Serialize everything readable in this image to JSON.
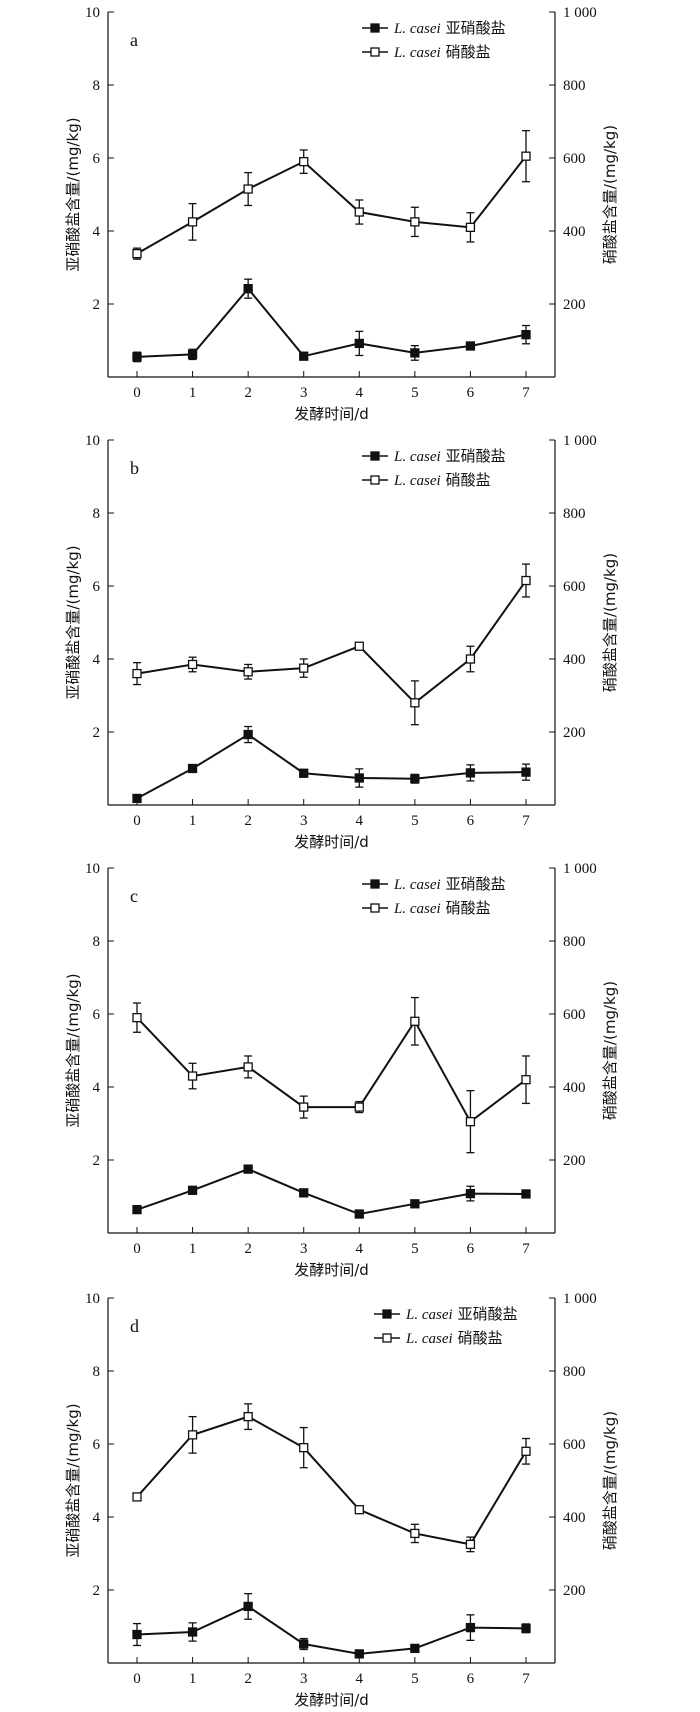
{
  "chart_data": [
    {
      "type": "line",
      "panel_label": "a",
      "categories": [
        "0",
        "1",
        "2",
        "3",
        "4",
        "5",
        "6",
        "7"
      ],
      "xlabel": "发酵时间/d",
      "ylabel": "亚硝酸盐含量/(mg/kg)",
      "y2label": "硝酸盐含量/(mg/kg)",
      "ylim": [
        0,
        10
      ],
      "y2lim": [
        0,
        1000
      ],
      "yticks": [
        "2",
        "4",
        "6",
        "8",
        "10"
      ],
      "y2ticks": [
        "200",
        "400",
        "600",
        "800",
        "1 000"
      ],
      "legend_position": "top-right",
      "series": [
        {
          "name_prefix": "L. casei",
          "name_suffix": "亚硝酸盐",
          "axis": "left",
          "marker": "filled-square",
          "values": [
            0.55,
            0.62,
            2.42,
            0.57,
            0.92,
            0.66,
            0.85,
            1.16
          ],
          "errors": [
            0.13,
            0.14,
            0.26,
            0.05,
            0.33,
            0.2,
            0.1,
            0.25
          ]
        },
        {
          "name_prefix": "L. casei",
          "name_suffix": "硝酸盐",
          "axis": "right",
          "marker": "open-square",
          "values": [
            338,
            425,
            515,
            590,
            452,
            425,
            410,
            605
          ],
          "errors": [
            15,
            50,
            45,
            32,
            33,
            40,
            40,
            70
          ]
        }
      ]
    },
    {
      "type": "line",
      "panel_label": "b",
      "categories": [
        "0",
        "1",
        "2",
        "3",
        "4",
        "5",
        "6",
        "7"
      ],
      "xlabel": "发酵时间/d",
      "ylabel": "亚硝酸盐含量/(mg/kg)",
      "y2label": "硝酸盐含量/(mg/kg)",
      "ylim": [
        0,
        10
      ],
      "y2lim": [
        0,
        1000
      ],
      "yticks": [
        "2",
        "4",
        "6",
        "8",
        "10"
      ],
      "y2ticks": [
        "200",
        "400",
        "600",
        "800",
        "1 000"
      ],
      "legend_position": "top-right",
      "series": [
        {
          "name_prefix": "L. casei",
          "name_suffix": "亚硝酸盐",
          "axis": "left",
          "marker": "filled-square",
          "values": [
            0.18,
            1.0,
            1.93,
            0.87,
            0.74,
            0.72,
            0.88,
            0.9
          ],
          "errors": [
            0.1,
            0.1,
            0.22,
            0.1,
            0.25,
            0.12,
            0.22,
            0.22
          ]
        },
        {
          "name_prefix": "L. casei",
          "name_suffix": "硝酸盐",
          "axis": "right",
          "marker": "open-square",
          "values": [
            360,
            385,
            365,
            375,
            435,
            280,
            400,
            615
          ],
          "errors": [
            30,
            20,
            20,
            25,
            8,
            60,
            35,
            45
          ]
        }
      ]
    },
    {
      "type": "line",
      "panel_label": "c",
      "categories": [
        "0",
        "1",
        "2",
        "3",
        "4",
        "5",
        "6",
        "7"
      ],
      "xlabel": "发酵时间/d",
      "ylabel": "亚硝酸盐含量/(mg/kg)",
      "y2label": "硝酸盐含量/(mg/kg)",
      "ylim": [
        0,
        10
      ],
      "y2lim": [
        0,
        1000
      ],
      "yticks": [
        "2",
        "4",
        "6",
        "8",
        "10"
      ],
      "y2ticks": [
        "200",
        "400",
        "600",
        "800",
        "1 000"
      ],
      "legend_position": "top-right",
      "series": [
        {
          "name_prefix": "L. casei",
          "name_suffix": "亚硝酸盐",
          "axis": "left",
          "marker": "filled-square",
          "values": [
            0.64,
            1.17,
            1.75,
            1.1,
            0.52,
            0.8,
            1.08,
            1.07
          ],
          "errors": [
            0.1,
            0.1,
            0.1,
            0.05,
            0.05,
            0.1,
            0.2,
            0.05
          ]
        },
        {
          "name_prefix": "L. casei",
          "name_suffix": "硝酸盐",
          "axis": "right",
          "marker": "open-square",
          "values": [
            590,
            430,
            455,
            345,
            345,
            580,
            305,
            420
          ],
          "errors": [
            40,
            35,
            30,
            30,
            15,
            65,
            85,
            65
          ]
        }
      ]
    },
    {
      "type": "line",
      "panel_label": "d",
      "categories": [
        "0",
        "1",
        "2",
        "3",
        "4",
        "5",
        "6",
        "7"
      ],
      "xlabel": "发酵时间/d",
      "ylabel": "亚硝酸盐含量/(mg/kg)",
      "y2label": "硝酸盐含量/(mg/kg)",
      "ylim": [
        0,
        10
      ],
      "y2lim": [
        0,
        1000
      ],
      "yticks": [
        "2",
        "4",
        "6",
        "8",
        "10"
      ],
      "y2ticks": [
        "200",
        "400",
        "600",
        "800",
        "1 000"
      ],
      "legend_position": "top-right",
      "series": [
        {
          "name_prefix": "L. casei",
          "name_suffix": "亚硝酸盐",
          "axis": "left",
          "marker": "filled-square",
          "values": [
            0.78,
            0.85,
            1.55,
            0.52,
            0.25,
            0.4,
            0.97,
            0.95
          ],
          "errors": [
            0.3,
            0.25,
            0.35,
            0.15,
            0.1,
            0.05,
            0.35,
            0.12
          ]
        },
        {
          "name_prefix": "L. casei",
          "name_suffix": "硝酸盐",
          "axis": "right",
          "marker": "open-square",
          "values": [
            455,
            625,
            675,
            590,
            420,
            355,
            325,
            580
          ],
          "errors": [
            10,
            50,
            35,
            55,
            8,
            25,
            20,
            35
          ]
        }
      ]
    }
  ]
}
